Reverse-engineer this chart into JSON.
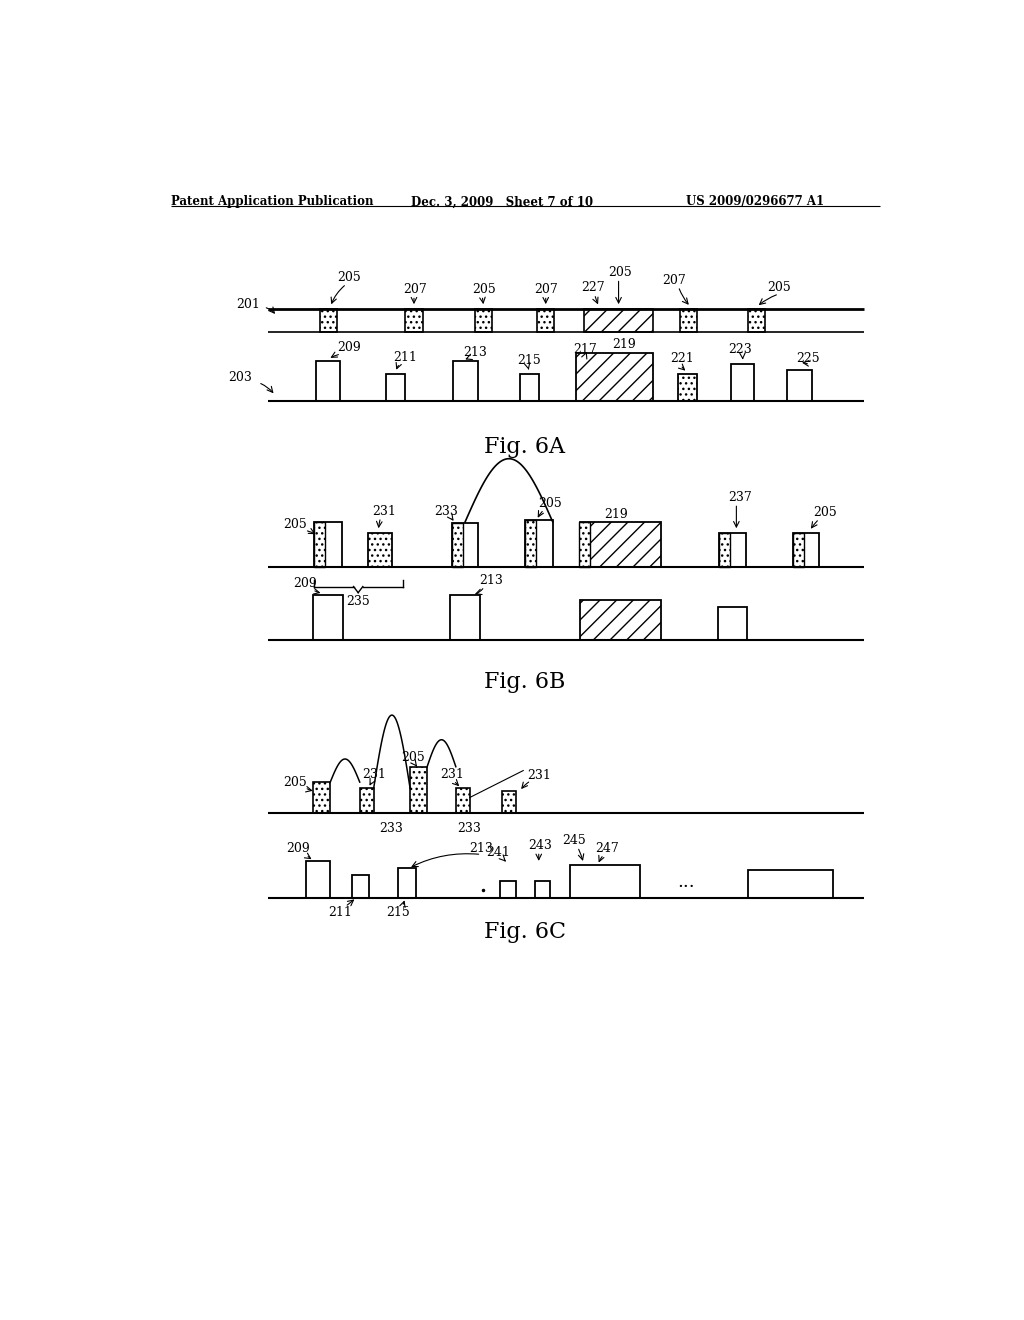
{
  "header_left": "Patent Application Publication",
  "header_mid": "Dec. 3, 2009   Sheet 7 of 10",
  "header_right": "US 2009/0296677 A1",
  "bg_color": "#ffffff",
  "fig_label_6A": "Fig. 6A",
  "fig_label_6B": "Fig. 6B",
  "fig_label_6C": "Fig. 6C"
}
